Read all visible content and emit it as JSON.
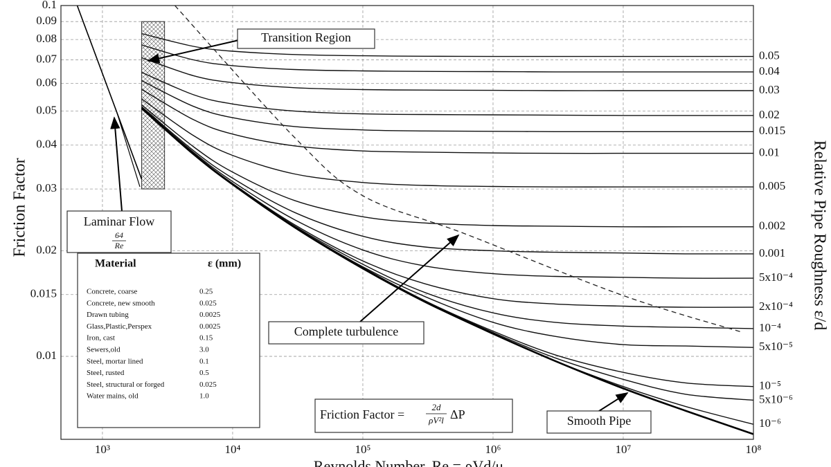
{
  "chart_data": {
    "type": "line",
    "x_label": "Reynolds Number, Re = ρVd/μ",
    "y_label": "Friction Factor",
    "y2_label": "Relative Pipe Roughness ε/d",
    "log_x": true,
    "log_y": true,
    "grid": true,
    "xlim": [
      480,
      100000000
    ],
    "ylim": [
      0.0058,
      0.1
    ],
    "xticks": [
      {
        "value": 1000,
        "label": "10³"
      },
      {
        "value": 10000,
        "label": "10⁴"
      },
      {
        "value": 100000,
        "label": "10⁵"
      },
      {
        "value": 1000000,
        "label": "10⁶"
      },
      {
        "value": 10000000,
        "label": "10⁷"
      },
      {
        "value": 100000000,
        "label": "10⁸"
      }
    ],
    "yticks": [
      0.01,
      0.015,
      0.02,
      0.03,
      0.04,
      0.05,
      0.06,
      0.07,
      0.08,
      0.09,
      0.1
    ],
    "x": [
      2000,
      5000,
      10000,
      30000,
      100000,
      300000,
      1000000,
      3000000,
      10000000,
      30000000,
      100000000
    ],
    "series": [
      {
        "name": "0.05",
        "color": "#111",
        "values": [
          0.0832,
          0.0765,
          0.0741,
          0.0725,
          0.0719,
          0.0717,
          0.0716,
          0.0716,
          0.0716,
          0.0716,
          0.0716
        ]
      },
      {
        "name": "0.04",
        "color": "#111",
        "values": [
          0.0772,
          0.07,
          0.0674,
          0.0657,
          0.0651,
          0.0649,
          0.0648,
          0.0647,
          0.0647,
          0.0647,
          0.0647
        ]
      },
      {
        "name": "0.03",
        "color": "#111",
        "values": [
          0.071,
          0.0631,
          0.0603,
          0.0583,
          0.0576,
          0.0574,
          0.0573,
          0.0572,
          0.0572,
          0.0572,
          0.0572
        ]
      },
      {
        "name": "0.02",
        "color": "#111",
        "values": [
          0.0645,
          0.0557,
          0.0524,
          0.05,
          0.0491,
          0.0489,
          0.0488,
          0.0487,
          0.0486,
          0.0486,
          0.0486
        ]
      },
      {
        "name": "0.015",
        "color": "#111",
        "values": [
          0.0611,
          0.0516,
          0.0479,
          0.0452,
          0.0442,
          0.0439,
          0.0438,
          0.0437,
          0.0437,
          0.0437,
          0.0437
        ]
      },
      {
        "name": "0.01",
        "color": "#111",
        "values": [
          0.0577,
          0.0473,
          0.043,
          0.0398,
          0.0385,
          0.0382,
          0.038,
          0.0379,
          0.0379,
          0.0379,
          0.0379
        ]
      },
      {
        "name": "0.005",
        "color": "#111",
        "values": [
          0.0542,
          0.0426,
          0.0374,
          0.0331,
          0.0313,
          0.0307,
          0.0305,
          0.0304,
          0.0304,
          0.0304,
          0.0304
        ]
      },
      {
        "name": "0.002",
        "color": "#111",
        "values": [
          0.0521,
          0.0396,
          0.0335,
          0.0278,
          0.025,
          0.024,
          0.0236,
          0.0235,
          0.0234,
          0.0234,
          0.0234
        ]
      },
      {
        "name": "0.001",
        "color": "#111",
        "values": [
          0.0515,
          0.0386,
          0.0322,
          0.0257,
          0.022,
          0.0205,
          0.02,
          0.0198,
          0.0197,
          0.0196,
          0.0196
        ]
      },
      {
        "name": "5x10⁻⁴",
        "color": "#111",
        "values": [
          0.0512,
          0.0382,
          0.0315,
          0.0245,
          0.0201,
          0.0181,
          0.0172,
          0.0169,
          0.0168,
          0.0167,
          0.0167
        ]
      },
      {
        "name": "2x10⁻⁴",
        "color": "#111",
        "values": [
          0.051,
          0.0379,
          0.0311,
          0.0237,
          0.0187,
          0.0161,
          0.0146,
          0.0141,
          0.0139,
          0.0138,
          0.0138
        ]
      },
      {
        "name": "10⁻⁴",
        "color": "#111",
        "values": [
          0.0509,
          0.0378,
          0.031,
          0.0235,
          0.0183,
          0.0152,
          0.0133,
          0.0125,
          0.0122,
          0.0121,
          0.012
        ]
      },
      {
        "name": "5x10⁻⁵",
        "color": "#111",
        "values": [
          0.0509,
          0.0378,
          0.0309,
          0.0234,
          0.018,
          0.0148,
          0.0125,
          0.0114,
          0.0108,
          0.0107,
          0.0106
        ]
      },
      {
        "name": "10⁻⁵",
        "color": "#111",
        "values": [
          0.0509,
          0.0377,
          0.0309,
          0.0233,
          0.0179,
          0.0144,
          0.0118,
          0.0101,
          0.009,
          0.0084,
          0.0082
        ]
      },
      {
        "name": "5x10⁻⁶",
        "color": "#111",
        "values": [
          0.0509,
          0.0377,
          0.0309,
          0.0233,
          0.0179,
          0.0144,
          0.0117,
          0.0099,
          0.0086,
          0.0078,
          0.0075
        ]
      },
      {
        "name": "10⁻⁶",
        "color": "#111",
        "values": [
          0.0509,
          0.0377,
          0.0309,
          0.0233,
          0.0179,
          0.0143,
          0.0116,
          0.0097,
          0.0082,
          0.0072,
          0.0064
        ]
      }
    ],
    "smooth_pipe": {
      "name": "Smooth Pipe",
      "color": "#000",
      "values": [
        0.0509,
        0.0377,
        0.0309,
        0.0233,
        0.0178,
        0.0143,
        0.0116,
        0.0097,
        0.0081,
        0.007,
        0.006
      ]
    },
    "laminar": {
      "name": "Laminar Flow",
      "numerator": "64",
      "denominator": "Re",
      "color": "#000",
      "x": [
        640,
        2000
      ],
      "values": [
        0.1,
        0.032
      ]
    },
    "turbulence_boundary": {
      "name": "Complete turbulence",
      "color": "#222",
      "x": [
        3600,
        30000,
        100000,
        600000,
        10000000,
        83000000
      ],
      "values": [
        0.1,
        0.042,
        0.0287,
        0.0224,
        0.0149,
        0.0117
      ]
    },
    "transition_region": {
      "label": "Transition Region",
      "x": [
        2000,
        3000
      ],
      "y": [
        0.03,
        0.09
      ]
    },
    "formula": {
      "lhs": "Friction Factor =",
      "numerator": "2d",
      "denominator": "ρV²l",
      "rhs": "ΔP"
    }
  },
  "materials": {
    "headers": [
      "Material",
      "ε (mm)"
    ],
    "rows": [
      [
        "Concrete, coarse",
        "0.25"
      ],
      [
        "Concrete, new smooth",
        "0.025"
      ],
      [
        "Drawn tubing",
        "0.0025"
      ],
      [
        "Glass,Plastic,Perspex",
        "0.0025"
      ],
      [
        "Iron, cast",
        "0.15"
      ],
      [
        "Sewers,old",
        "3.0"
      ],
      [
        "Steel, mortar lined",
        "0.1"
      ],
      [
        "Steel, rusted",
        "0.5"
      ],
      [
        "Steel, structural or forged",
        "0.025"
      ],
      [
        "Water mains, old",
        "1.0"
      ]
    ]
  }
}
